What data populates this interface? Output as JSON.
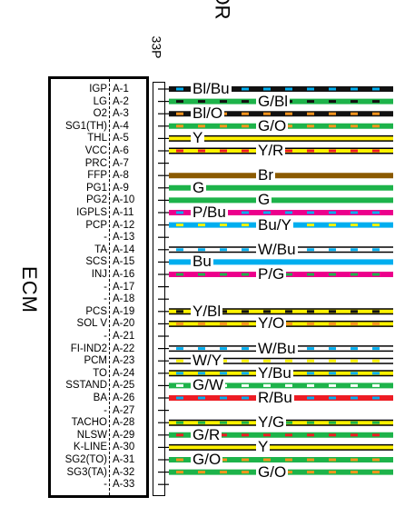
{
  "header": {
    "connector_text": "OR",
    "pin_count": "33P"
  },
  "module": {
    "name": "ECM"
  },
  "colors": {
    "Bl": "#111111",
    "Bu": "#00aeef",
    "O": "#f7941d",
    "G": "#1db34a",
    "Y": "#fff200",
    "R": "#ed1c24",
    "W": "#ffffff",
    "Br": "#8b5a00",
    "P": "#ec008c"
  },
  "pins": [
    {
      "signal": "IGP",
      "pin": "A-1",
      "wire": "Bl/Bu"
    },
    {
      "signal": "LG",
      "pin": "A-2",
      "wire": "G/Bl"
    },
    {
      "signal": "O2",
      "pin": "A-3",
      "wire": "Bl/O"
    },
    {
      "signal": "SG1(TH)",
      "pin": "A-4",
      "wire": "G/O"
    },
    {
      "signal": "THL",
      "pin": "A-5",
      "wire": "Y"
    },
    {
      "signal": "VCC",
      "pin": "A-6",
      "wire": "Y/R"
    },
    {
      "signal": "PRC",
      "pin": "A-7",
      "wire": ""
    },
    {
      "signal": "FFP",
      "pin": "A-8",
      "wire": "Br"
    },
    {
      "signal": "PG1",
      "pin": "A-9",
      "wire": "G"
    },
    {
      "signal": "PG2",
      "pin": "A-10",
      "wire": "G"
    },
    {
      "signal": "IGPLS",
      "pin": "A-11",
      "wire": "P/Bu"
    },
    {
      "signal": "PCP",
      "pin": "A-12",
      "wire": "Bu/Y"
    },
    {
      "signal": "-",
      "pin": "A-13",
      "wire": ""
    },
    {
      "signal": "TA",
      "pin": "A-14",
      "wire": "W/Bu"
    },
    {
      "signal": "SCS",
      "pin": "A-15",
      "wire": "Bu"
    },
    {
      "signal": "INJ",
      "pin": "A-16",
      "wire": "P/G"
    },
    {
      "signal": "-",
      "pin": "A-17",
      "wire": ""
    },
    {
      "signal": "-",
      "pin": "A-18",
      "wire": ""
    },
    {
      "signal": "PCS",
      "pin": "A-19",
      "wire": "Y/Bl"
    },
    {
      "signal": "SOL V",
      "pin": "A-20",
      "wire": "Y/O"
    },
    {
      "signal": "-",
      "pin": "A-21",
      "wire": ""
    },
    {
      "signal": "FI-IND2",
      "pin": "A-22",
      "wire": "W/Bu"
    },
    {
      "signal": "PCM",
      "pin": "A-23",
      "wire": "W/Y"
    },
    {
      "signal": "TO",
      "pin": "A-24",
      "wire": "Y/Bu"
    },
    {
      "signal": "SSTAND",
      "pin": "A-25",
      "wire": "G/W"
    },
    {
      "signal": "BA",
      "pin": "A-26",
      "wire": "R/Bu"
    },
    {
      "signal": "-",
      "pin": "A-27",
      "wire": ""
    },
    {
      "signal": "TACHO",
      "pin": "A-28",
      "wire": "Y/G"
    },
    {
      "signal": "NLSW",
      "pin": "A-29",
      "wire": "G/R"
    },
    {
      "signal": "K-LINE",
      "pin": "A-30",
      "wire": "Y"
    },
    {
      "signal": "SG2(TO)",
      "pin": "A-31",
      "wire": "G/O"
    },
    {
      "signal": "SG3(TA)",
      "pin": "A-32",
      "wire": "G/O"
    },
    {
      "signal": "-",
      "pin": "A-33",
      "wire": ""
    }
  ]
}
